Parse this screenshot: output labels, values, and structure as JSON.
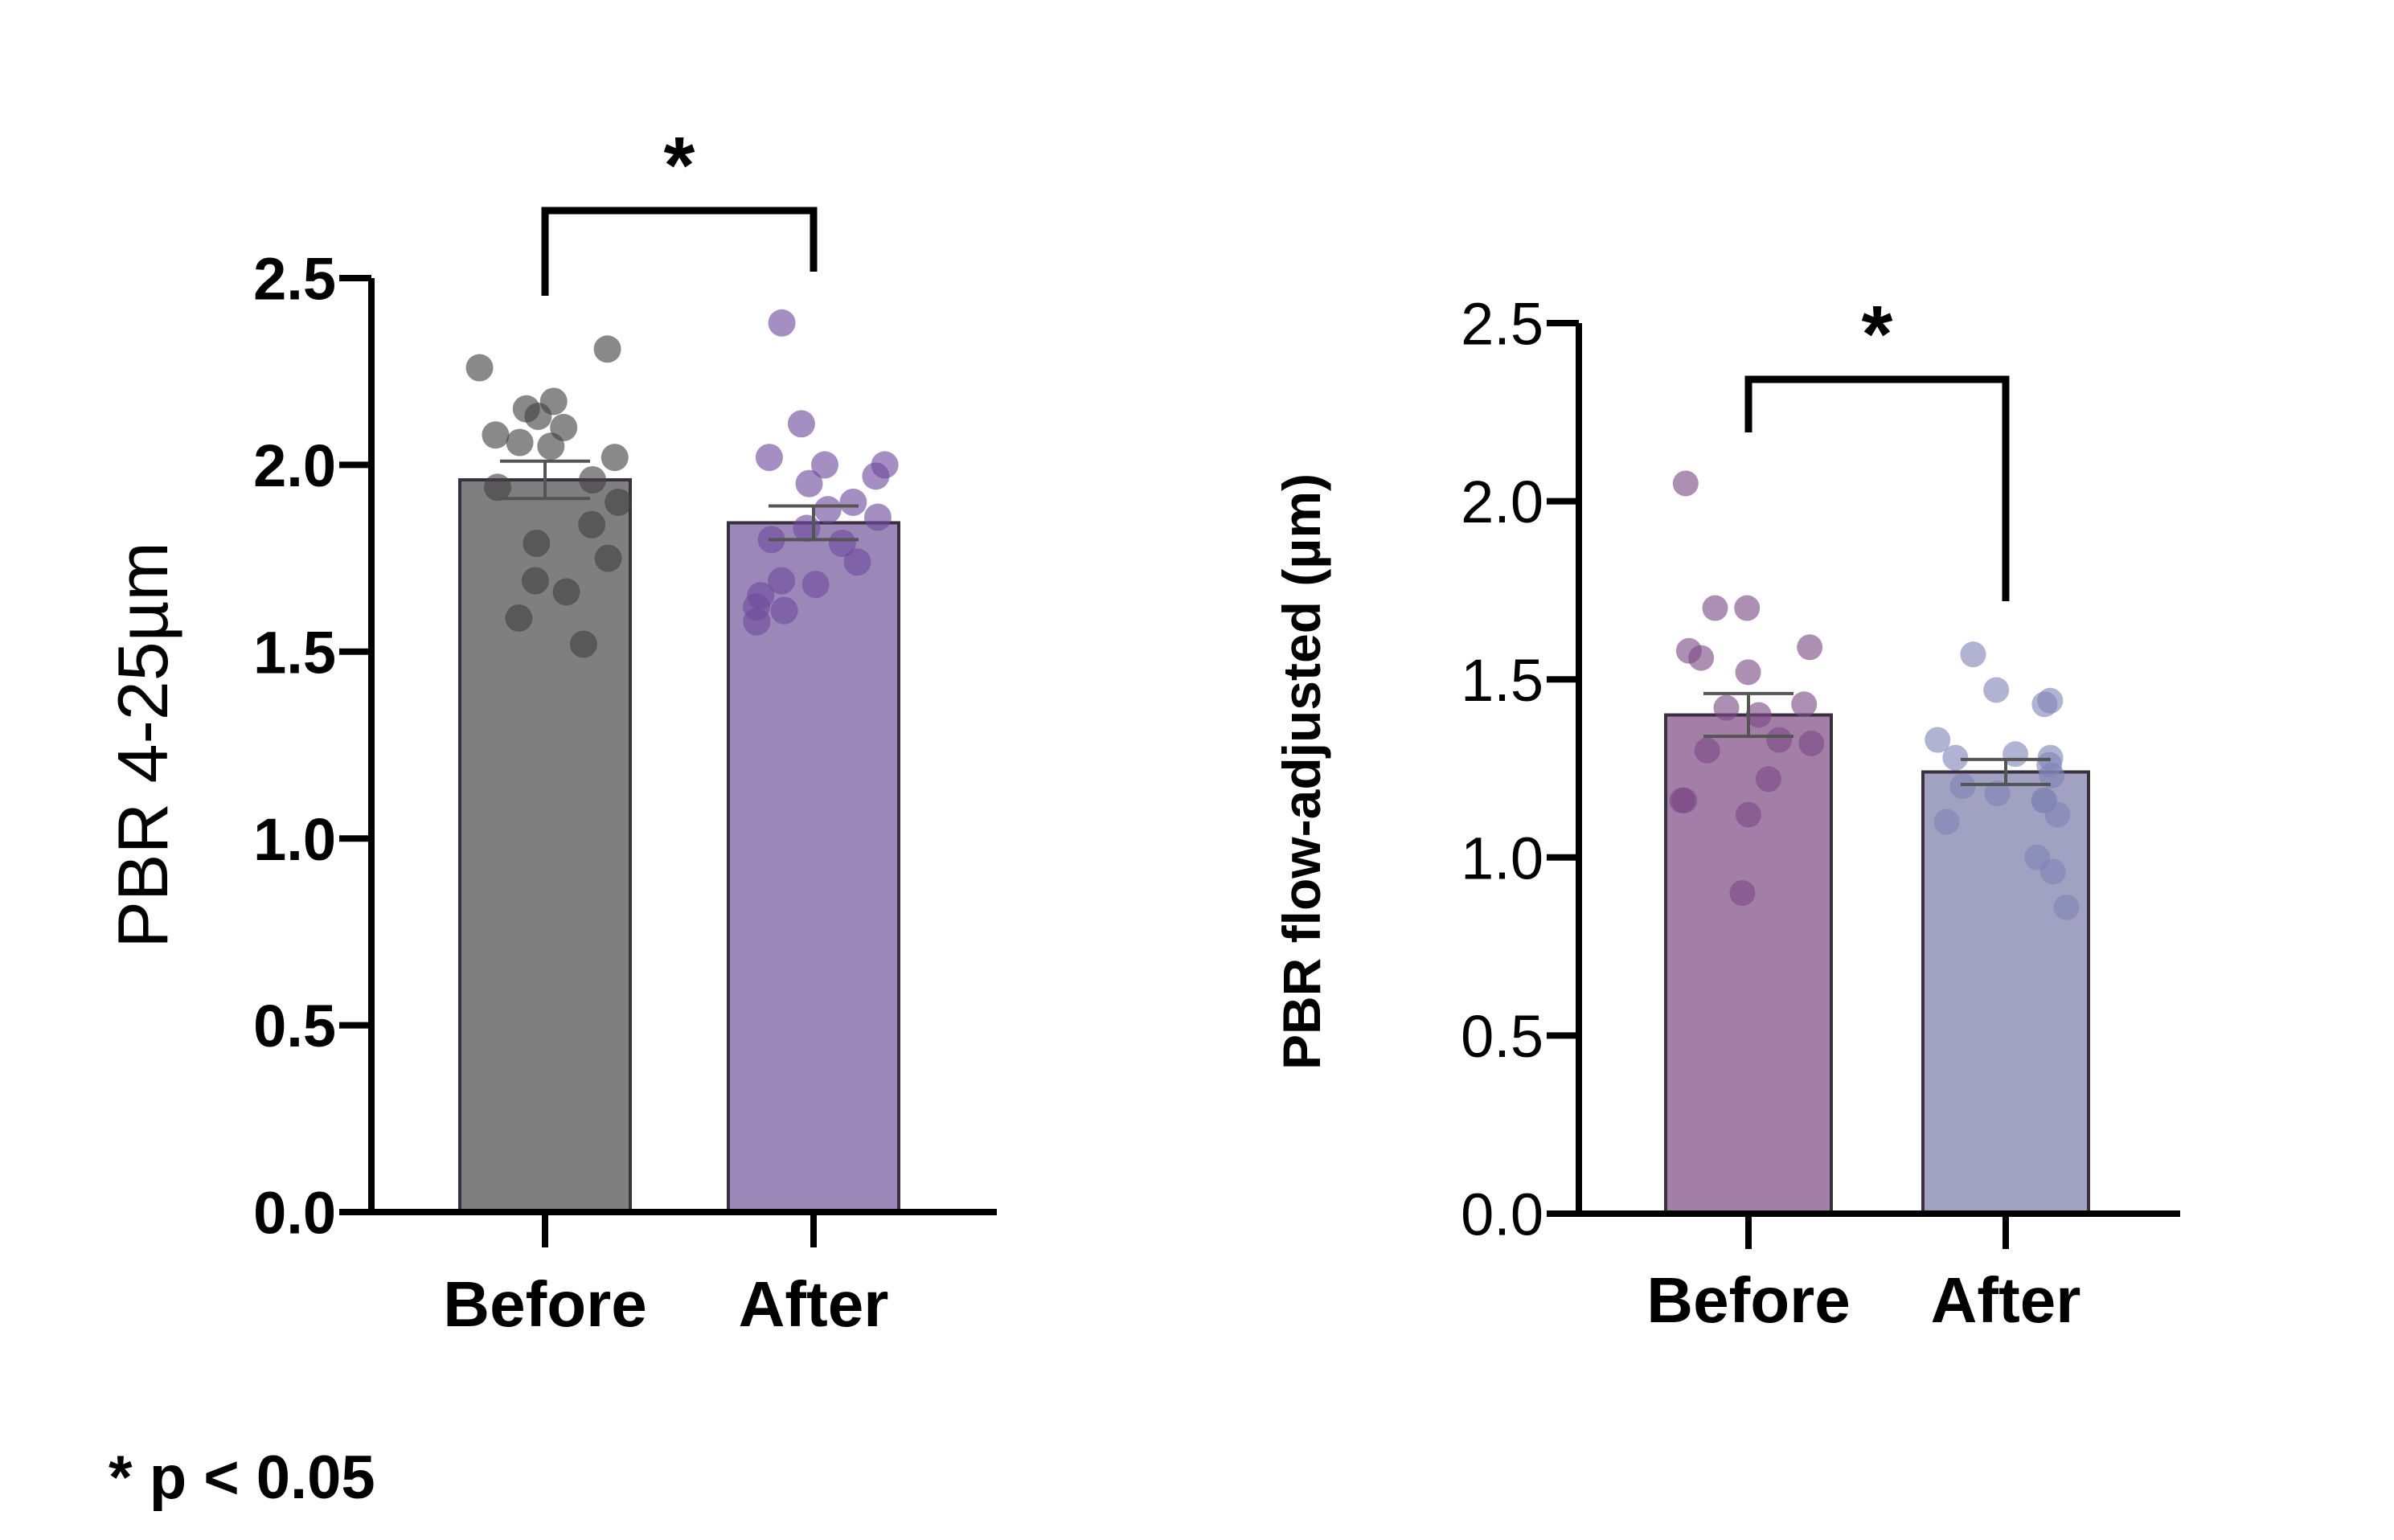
{
  "chart_data": [
    {
      "type": "bar",
      "ylabel": "PBR 4-25µm",
      "ylim": [
        0,
        2.5
      ],
      "ytick_labels": [
        "0.0",
        "0.5",
        "1.0",
        "1.5",
        "2.0",
        "2.5"
      ],
      "yticks": [
        0,
        0.5,
        1.0,
        1.5,
        2.0,
        2.5
      ],
      "categories": [
        "Before",
        "After"
      ],
      "values": [
        1.96,
        1.845
      ],
      "sem": [
        0.05,
        0.045
      ],
      "bar_colors": [
        "#7f7f7f",
        "#9c88b8"
      ],
      "point_colors": [
        "#404040",
        "#6e4a9c"
      ],
      "points": [
        [
          2.31,
          2.26,
          2.17,
          2.15,
          2.13,
          2.1,
          2.08,
          2.06,
          2.05,
          2.02,
          1.96,
          1.94,
          1.9,
          1.84,
          1.79,
          1.75,
          1.69,
          1.66,
          1.59,
          1.52
        ],
        [
          2.38,
          2.11,
          2.02,
          2.0,
          2.0,
          1.97,
          1.95,
          1.9,
          1.88,
          1.86,
          1.83,
          1.8,
          1.79,
          1.74,
          1.69,
          1.68,
          1.65,
          1.62,
          1.61,
          1.58
        ]
      ],
      "significance": {
        "label": "*",
        "pair": [
          "Before",
          "After"
        ]
      }
    },
    {
      "type": "bar",
      "ylabel": "PBR flow-adjusted (µm)",
      "ylim": [
        0,
        2.5
      ],
      "ytick_labels": [
        "0.0",
        "0.5",
        "1.0",
        "1.5",
        "2.0",
        "2.5"
      ],
      "yticks": [
        0,
        0.5,
        1.0,
        1.5,
        2.0,
        2.5
      ],
      "categories": [
        "Before",
        "After"
      ],
      "values": [
        1.4,
        1.24
      ],
      "sem": [
        0.06,
        0.035
      ],
      "bar_colors": [
        "#a37fa8",
        "#a1a1c2"
      ],
      "point_colors": [
        "#7d4a86",
        "#7f84b4"
      ],
      "points": [
        [
          2.05,
          1.7,
          1.7,
          1.59,
          1.58,
          1.56,
          1.52,
          1.43,
          1.42,
          1.4,
          1.33,
          1.32,
          1.3,
          1.22,
          1.16,
          1.16,
          1.12,
          0.9
        ],
        [
          1.57,
          1.47,
          1.44,
          1.43,
          1.33,
          1.29,
          1.28,
          1.28,
          1.26,
          1.23,
          1.2,
          1.18,
          1.16,
          1.16,
          1.12,
          1.1,
          1.0,
          0.96,
          0.86
        ]
      ],
      "significance": {
        "label": "*",
        "pair": [
          "Before",
          "After"
        ]
      }
    }
  ],
  "footnote": "* p < 0.05"
}
